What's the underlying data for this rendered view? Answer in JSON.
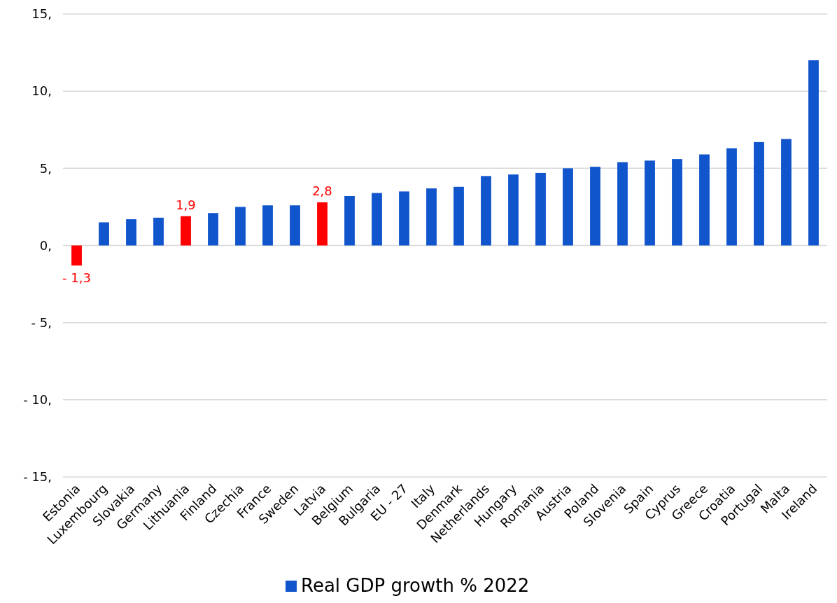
{
  "chart_data": {
    "type": "bar",
    "categories": [
      "Estonia",
      "Luxembourg",
      "Slovakia",
      "Germany",
      "Lithuania",
      "Finland",
      "Czechia",
      "France",
      "Sweden",
      "Latvia",
      "Belgium",
      "Bulgaria",
      "EU - 27",
      "Italy",
      "Denmark",
      "Netherlands",
      "Hungary",
      "Romania",
      "Austria",
      "Poland",
      "Slovenia",
      "Spain",
      "Cyprus",
      "Greece",
      "Croatia",
      "Portugal",
      "Malta",
      "Ireland"
    ],
    "series": [
      {
        "name": "Real GDP growth % 2022",
        "color": "#1155cc",
        "values": [
          -1.3,
          1.5,
          1.7,
          1.8,
          1.9,
          2.1,
          2.5,
          2.6,
          2.6,
          2.8,
          3.2,
          3.4,
          3.5,
          3.7,
          3.8,
          4.5,
          4.6,
          4.7,
          5.0,
          5.1,
          5.4,
          5.5,
          5.6,
          5.9,
          6.3,
          6.7,
          6.9,
          12.0
        ],
        "colors": [
          "#ff0000",
          "#1155cc",
          "#1155cc",
          "#1155cc",
          "#ff0000",
          "#1155cc",
          "#1155cc",
          "#1155cc",
          "#1155cc",
          "#ff0000",
          "#1155cc",
          "#1155cc",
          "#1155cc",
          "#1155cc",
          "#1155cc",
          "#1155cc",
          "#1155cc",
          "#1155cc",
          "#1155cc",
          "#1155cc",
          "#1155cc",
          "#1155cc",
          "#1155cc",
          "#1155cc",
          "#1155cc",
          "#1155cc",
          "#1155cc",
          "#1155cc"
        ],
        "value_labels": [
          "- 1,3",
          null,
          null,
          null,
          "1,9",
          null,
          null,
          null,
          null,
          "2,8",
          null,
          null,
          null,
          null,
          null,
          null,
          null,
          null,
          null,
          null,
          null,
          null,
          null,
          null,
          null,
          null,
          null,
          null
        ]
      }
    ],
    "ylim": [
      -15,
      15
    ],
    "yticks": [
      {
        "value": -15,
        "label": "- 15,"
      },
      {
        "value": -10,
        "label": "- 10,"
      },
      {
        "value": -5,
        "label": "- 5,"
      },
      {
        "value": 0,
        "label": "0,"
      },
      {
        "value": 5,
        "label": "5,"
      },
      {
        "value": 10,
        "label": "10,"
      },
      {
        "value": 15,
        "label": "15,"
      }
    ],
    "grid": "y",
    "legend": "bottom"
  }
}
